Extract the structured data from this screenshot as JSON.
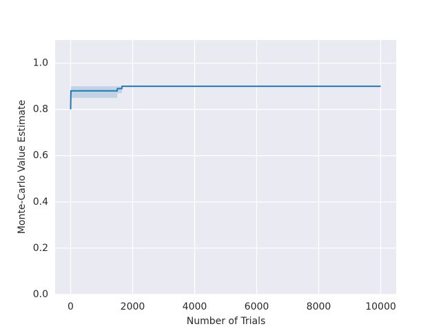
{
  "chart_data": {
    "type": "line",
    "xlabel": "Number of Trials",
    "ylabel": "Monte-Carlo Value Estimate",
    "x": [
      0,
      10,
      1500,
      1510,
      1650,
      1660,
      10000
    ],
    "series": [
      {
        "color": "#1f77b4",
        "values": [
          0.8,
          0.88,
          0.88,
          0.89,
          0.89,
          0.9,
          0.9
        ],
        "lower": [
          0.8,
          0.85,
          0.85,
          0.87,
          0.87,
          0.9,
          0.9
        ],
        "upper": [
          0.8,
          0.9,
          0.9,
          0.9,
          0.9,
          0.9,
          0.9
        ]
      }
    ],
    "xlim": [
      -500,
      10500
    ],
    "ylim": [
      0,
      1.1
    ],
    "xticks": [
      0,
      2000,
      4000,
      6000,
      8000,
      10000
    ],
    "yticks": [
      {
        "value": 0,
        "label": "0.0"
      },
      0.2,
      0.4,
      0.6,
      0.8,
      {
        "value": 1,
        "label": "1.0"
      }
    ],
    "grid": true
  }
}
